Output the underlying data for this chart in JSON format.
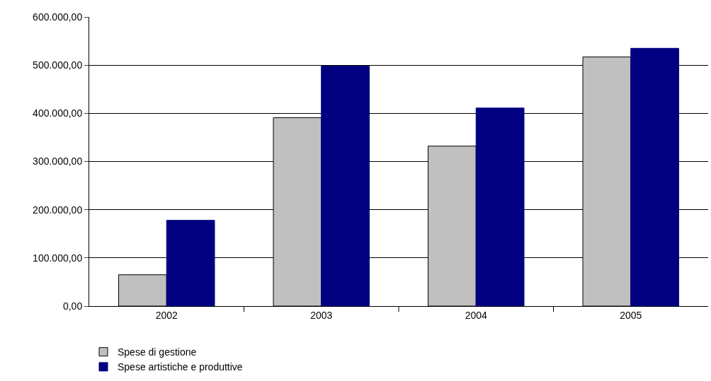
{
  "chart_data": {
    "type": "bar",
    "categories": [
      "2002",
      "2003",
      "2004",
      "2005"
    ],
    "series": [
      {
        "name": "Spese di gestione",
        "color": "#c0c0c0",
        "values": [
          65000,
          391000,
          332000,
          517000
        ]
      },
      {
        "name": "Spese artistiche e produttive",
        "color": "#000080",
        "values": [
          178000,
          498000,
          411000,
          535000
        ]
      }
    ],
    "ylim": [
      0,
      600000
    ],
    "yticks": [
      {
        "value": 0,
        "label": "0,00"
      },
      {
        "value": 100000,
        "label": "100.000,00"
      },
      {
        "value": 200000,
        "label": "200.000,00"
      },
      {
        "value": 300000,
        "label": "300.000,00"
      },
      {
        "value": 400000,
        "label": "400.000,00"
      },
      {
        "value": 500000,
        "label": "500.000,00"
      },
      {
        "value": 600000,
        "label": "600.000,00"
      }
    ],
    "grid": "y",
    "legend": "bottom"
  }
}
